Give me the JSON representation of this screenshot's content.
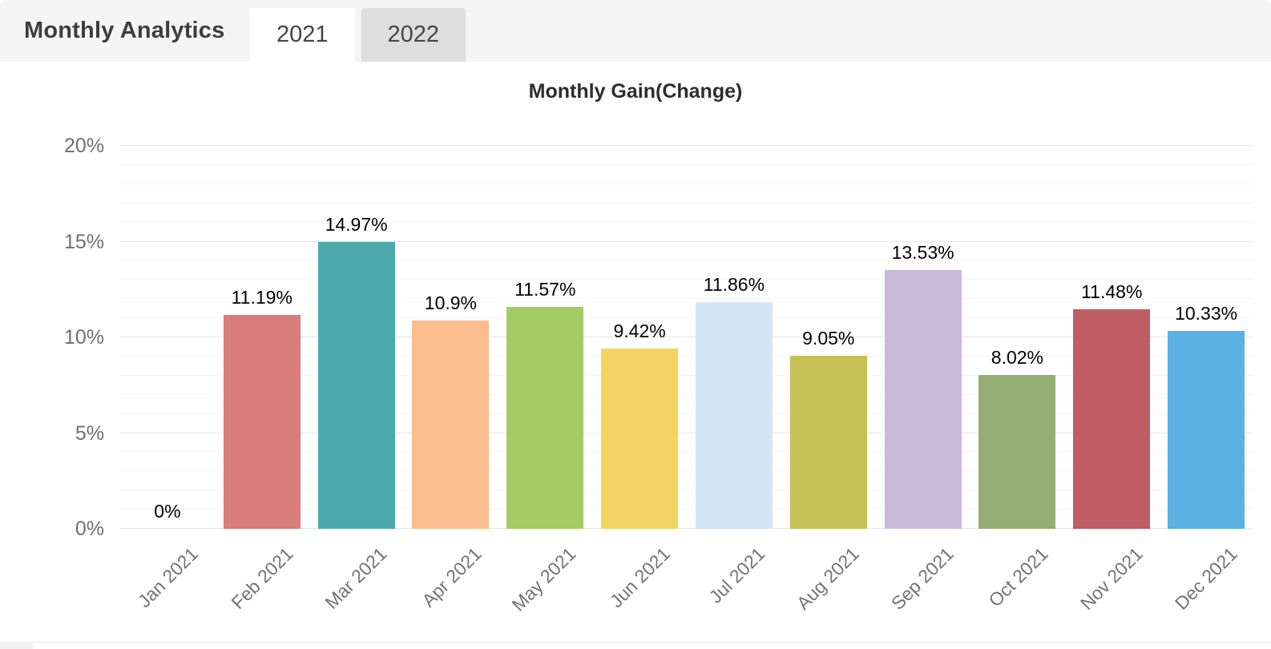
{
  "header": {
    "title": "Monthly Analytics",
    "tabs": [
      {
        "label": "2021",
        "active": true
      },
      {
        "label": "2022",
        "active": false
      }
    ]
  },
  "chart_data": {
    "type": "bar",
    "title": "Monthly Gain(Change)",
    "categories": [
      "Jan 2021",
      "Feb 2021",
      "Mar 2021",
      "Apr 2021",
      "May 2021",
      "Jun 2021",
      "Jul 2021",
      "Aug 2021",
      "Sep 2021",
      "Oct 2021",
      "Nov 2021",
      "Dec 2021"
    ],
    "values": [
      0,
      11.19,
      14.97,
      10.9,
      11.57,
      9.42,
      11.86,
      9.05,
      13.53,
      8.02,
      11.48,
      10.33
    ],
    "value_labels": [
      "0%",
      "11.19%",
      "14.97%",
      "10.9%",
      "11.57%",
      "9.42%",
      "11.86%",
      "9.05%",
      "13.53%",
      "8.02%",
      "11.48%",
      "10.33%"
    ],
    "bar_colors": [
      null,
      "#d87c7c",
      "#4caaac",
      "#fbbd8d",
      "#a5cb64",
      "#f3d462",
      "#d3e6f6",
      "#c6c156",
      "#c9badc",
      "#94ae73",
      "#c05d64",
      "#59b2e3"
    ],
    "xlabel": "",
    "ylabel": "",
    "ylim": [
      0,
      20
    ],
    "y_ticks": [
      {
        "value": 0,
        "label": "0%"
      },
      {
        "value": 5,
        "label": "5%"
      },
      {
        "value": 10,
        "label": "10%"
      },
      {
        "value": 15,
        "label": "15%"
      },
      {
        "value": 20,
        "label": "20%"
      }
    ],
    "y_minor_step": 1,
    "y_major_step": 5,
    "grid": "horizontal",
    "legend": "none",
    "x_label_rotation_deg": 45
  }
}
